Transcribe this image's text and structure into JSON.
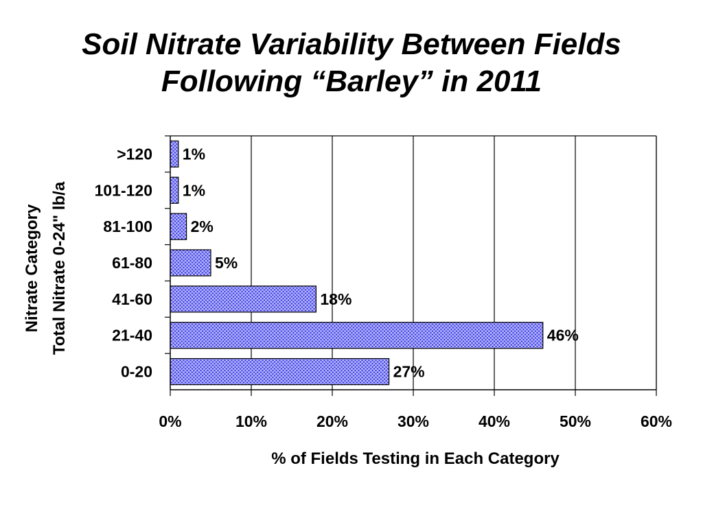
{
  "title": {
    "line1": "Soil Nitrate Variability Between Fields",
    "line2": "Following “Barley” in 2011"
  },
  "chart_data": {
    "type": "bar",
    "orientation": "horizontal",
    "categories": [
      "0-20",
      "21-40",
      "41-60",
      "61-80",
      "81-100",
      "101-120",
      ">120"
    ],
    "values": [
      27,
      46,
      18,
      5,
      2,
      1,
      1
    ],
    "data_labels": [
      "27%",
      "46%",
      "18%",
      "5%",
      "2%",
      "1%",
      "1%"
    ],
    "xlim": [
      0,
      60
    ],
    "x_ticks": [
      0,
      10,
      20,
      30,
      40,
      50,
      60
    ],
    "x_tick_labels": [
      "0%",
      "10%",
      "20%",
      "30%",
      "40%",
      "50%",
      "60%"
    ],
    "xlabel": "% of Fields Testing in Each Category",
    "ylabel_lines": [
      "Nitrate Category",
      "Total Nitrate 0-24\" lb/a"
    ],
    "grid": "vertical",
    "colors": {
      "bar_fill": "#4848e8",
      "bar_pattern": "#ffffff",
      "bar_stroke": "#000000",
      "grid": "#000000",
      "background": "#ffffff"
    }
  }
}
